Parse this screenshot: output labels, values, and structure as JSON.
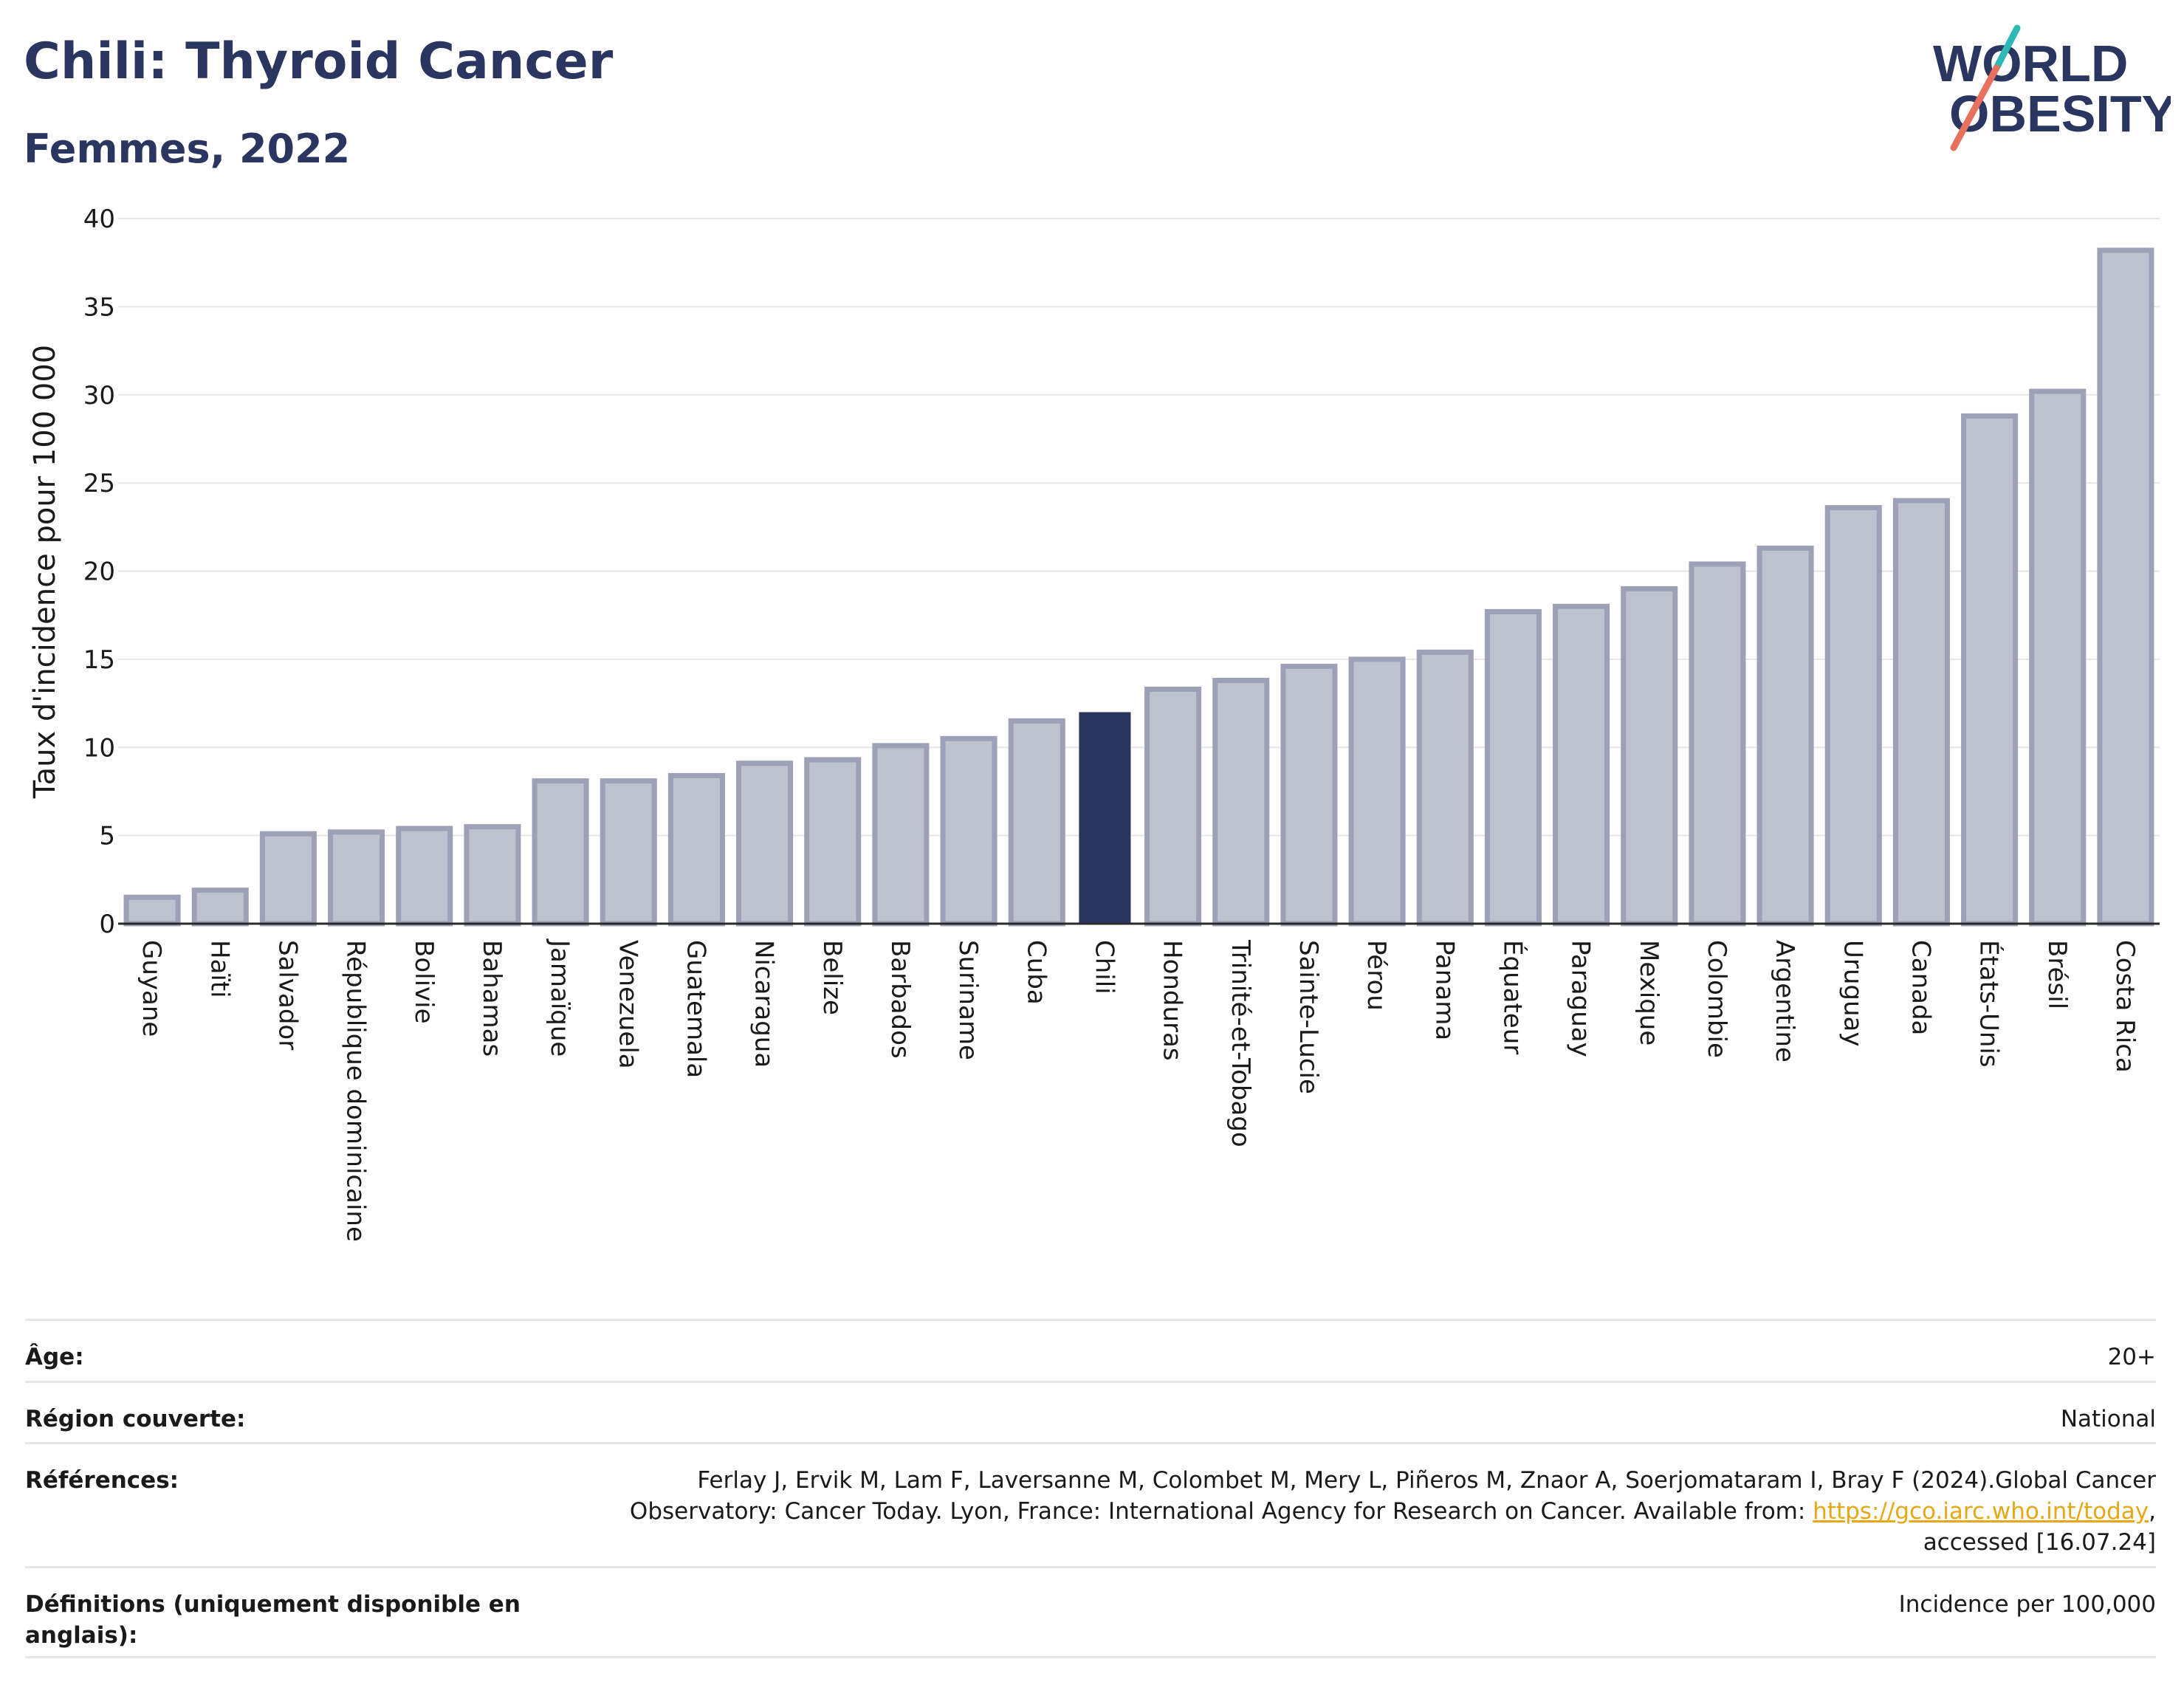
{
  "header": {
    "title": "Chili: Thyroid Cancer",
    "subtitle": "Femmes, 2022"
  },
  "logo": {
    "line1": "WORLD",
    "line2": "OBESITY"
  },
  "chart_data": {
    "type": "bar",
    "ylabel": "Taux d'incidence pour 100 000",
    "ylim": [
      0,
      40
    ],
    "yticks": [
      0,
      5,
      10,
      15,
      20,
      25,
      30,
      35,
      40
    ],
    "grid": true,
    "highlight": "Chili",
    "colors": {
      "bar": "#bec1ce",
      "bar_edge": "#9da1b8",
      "highlight": "#2a3560",
      "grid": "#e6e6e6"
    },
    "categories": [
      "Guyane",
      "Haïti",
      "Salvador",
      "République dominicaine",
      "Bolivie",
      "Bahamas",
      "Jamaïque",
      "Venezuela",
      "Guatemala",
      "Nicaragua",
      "Belize",
      "Barbados",
      "Suriname",
      "Cuba",
      "Chili",
      "Honduras",
      "Trinité-et-Tobago",
      "Sainte-Lucie",
      "Pérou",
      "Panama",
      "Équateur",
      "Paraguay",
      "Mexique",
      "Colombie",
      "Argentine",
      "Uruguay",
      "Canada",
      "États-Unis",
      "Brésil",
      "Costa Rica"
    ],
    "values": [
      1.5,
      1.9,
      5.1,
      5.2,
      5.4,
      5.5,
      8.1,
      8.1,
      8.4,
      9.1,
      9.3,
      10.1,
      10.5,
      11.5,
      12.0,
      13.3,
      13.8,
      14.6,
      15.0,
      15.4,
      17.7,
      18.0,
      19.0,
      20.4,
      21.3,
      23.6,
      24.0,
      28.8,
      30.2,
      38.2
    ]
  },
  "meta": {
    "age_label": "Âge:",
    "age_value": "20+",
    "region_label": "Région couverte:",
    "region_value": "National",
    "refs_label": "Références:",
    "refs_text_1": "Ferlay J, Ervik M, Lam F, Laversanne M, Colombet M, Mery L, Piñeros M, Znaor A, Soerjomataram I, Bray F (2024).Global Cancer Observatory: Cancer Today. Lyon, France: International Agency for Research on Cancer. Available from: ",
    "refs_link": "https://gco.iarc.who.int/today",
    "refs_text_2": ", accessed [16.07.24]",
    "defs_label": "Définitions (uniquement disponible en anglais):",
    "defs_value": "Incidence per 100,000"
  }
}
